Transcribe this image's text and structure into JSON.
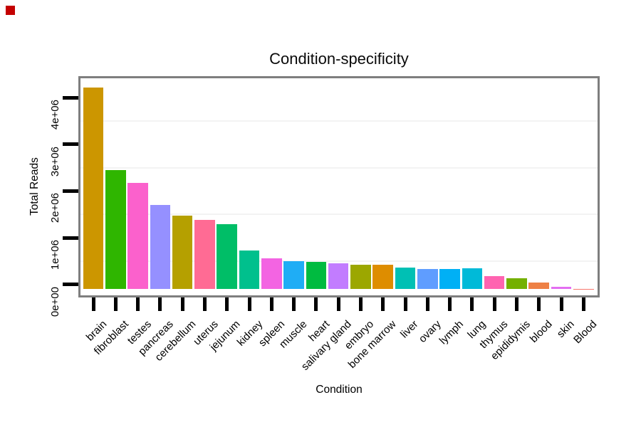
{
  "window": {
    "background": "#ffffff"
  },
  "marker": {
    "color": "#C40000"
  },
  "chart_data": {
    "type": "bar",
    "title": "Condition-specificity",
    "xlabel": "Condition",
    "ylabel": "Total Reads",
    "legend": "none",
    "grid": "faint horizontal minor gridlines at 0.5e6 steps",
    "ylim": [
      0,
      4650000
    ],
    "y_ticks": [
      {
        "label": "0e+00",
        "value": 0
      },
      {
        "label": "1e+06",
        "value": 1000000
      },
      {
        "label": "2e+06",
        "value": 2000000
      },
      {
        "label": "3e+06",
        "value": 3000000
      },
      {
        "label": "4e+06",
        "value": 4000000
      }
    ],
    "y_minor_gridlines": [
      500000,
      1500000,
      2500000,
      3500000
    ],
    "categories": [
      "brain",
      "fibroblast",
      "testes",
      "pancreas",
      "cerebellum",
      "uterus",
      "jejunum",
      "kidney",
      "spleen",
      "muscle",
      "heart",
      "salivary gland",
      "embryo",
      "bone marrow",
      "liver",
      "ovary",
      "lymph",
      "lung",
      "thymus",
      "epididymis",
      "blood",
      "skin",
      "Blood"
    ],
    "values": [
      4320000,
      2550000,
      2270000,
      1800000,
      1570000,
      1480000,
      1390000,
      830000,
      660000,
      600000,
      580000,
      555000,
      520000,
      520000,
      465000,
      435000,
      435000,
      450000,
      280000,
      235000,
      145000,
      60000,
      8000
    ],
    "colors": [
      "#CC9600",
      "#2FB600",
      "#FB61CC",
      "#9590FF",
      "#B5A000",
      "#FF6B94",
      "#00BE67",
      "#00C08D",
      "#F364E2",
      "#1FADF5",
      "#00BB40",
      "#C27CFF",
      "#9CA700",
      "#DE8D00",
      "#00C0B4",
      "#5F9DFF",
      "#00B0F5",
      "#00BAD8",
      "#FF63B0",
      "#74B000",
      "#EE8145",
      "#E36EF2",
      "#F8766D"
    ],
    "axis_tick_color": "#000000",
    "frame_color": "#7e7e7e",
    "gridline_color": "#f3f3f3"
  }
}
